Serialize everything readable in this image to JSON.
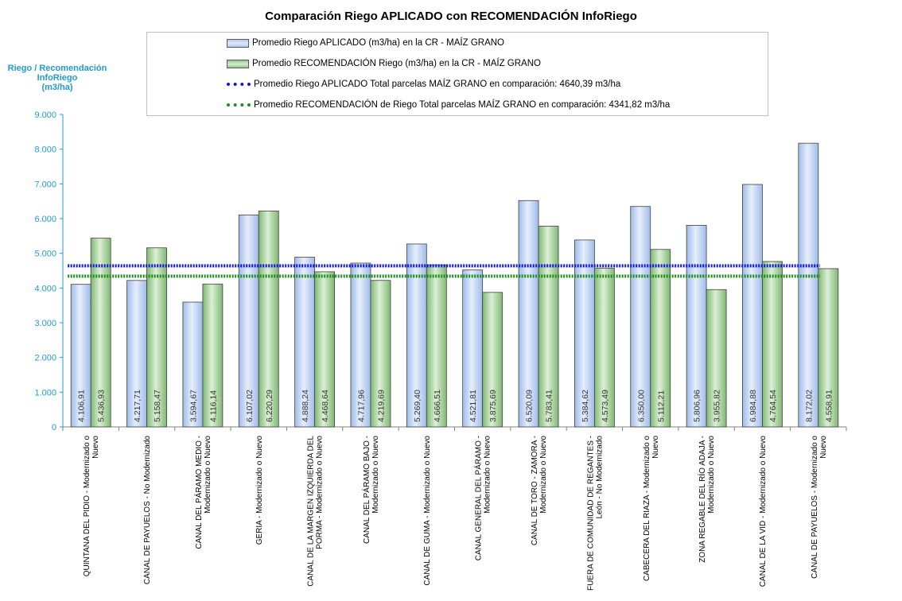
{
  "chart_data": {
    "type": "bar",
    "title": "Comparación Riego APLICADO con RECOMENDACIÓN InfoRiego",
    "ylabel_lines": [
      "Riego / Recomendación",
      "InfoRiego",
      "(m3/ha)"
    ],
    "xlabel": "",
    "ylim": [
      0,
      9000
    ],
    "yticks": [
      "0",
      "1.000",
      "2.000",
      "3.000",
      "4.000",
      "5.000",
      "6.000",
      "7.000",
      "8.000",
      "9.000"
    ],
    "ytick_values": [
      0,
      1000,
      2000,
      3000,
      4000,
      5000,
      6000,
      7000,
      8000,
      9000
    ],
    "categories": [
      [
        "QUINTANA DEL PIDIO - Modernizado o",
        "Nuevo"
      ],
      [
        "CANAL DE PAYUELOS - No Modernizado"
      ],
      [
        "CANAL DEL PÁRAMO MEDIO -",
        "Modernizado o Nuevo"
      ],
      [
        "GERIA - Modernizado o Nuevo"
      ],
      [
        "CANAL DE LA MARGEN IZQUIERDA DEL",
        "PORMA - Modernizado o Nuevo"
      ],
      [
        "CANAL DEL PÁRAMO BAJO -",
        "Modernizado o Nuevo"
      ],
      [
        "CANAL DE GUMA - Modernizado o Nuevo"
      ],
      [
        "CANAL GENERAL DEL PÁRAMO -",
        "Modernizado o Nuevo"
      ],
      [
        "CANAL DE TORO - ZAMORA -",
        "Modernizado o Nuevo"
      ],
      [
        "FUERA DE COMUNIDAD DE REGANTES -",
        "León - No Modernizado"
      ],
      [
        "CABECERA DEL RIAZA - Modernizado o",
        "Nuevo"
      ],
      [
        "ZONA REGABLE DEL RÍO ADAJA -",
        "Modernizado o Nuevo"
      ],
      [
        "CANAL DE LA VID - Modernizado o Nuevo"
      ],
      [
        "CANAL DE PAYUELOS - Modernizado o",
        "Nuevo"
      ]
    ],
    "series": [
      {
        "name": "Promedio Riego APLICADO (m3/ha) en la CR - MAÍZ GRANO",
        "color_top": "#aec6ef",
        "color_mid": "#dfe9fa",
        "color_border": "#404040",
        "values": [
          4106.91,
          4217.71,
          3594.67,
          6107.02,
          4888.24,
          4717.96,
          5269.4,
          4521.81,
          6520.09,
          5384.62,
          6350.0,
          5806.96,
          6984.88,
          8172.02
        ],
        "labels": [
          "4.106,91",
          "4.217,71",
          "3.594,67",
          "6.107,02",
          "4.888,24",
          "4.717,96",
          "5.269,40",
          "4.521,81",
          "6.520,09",
          "5.384,62",
          "6.350,00",
          "5.806,96",
          "6.984,88",
          "8.172,02"
        ]
      },
      {
        "name": "Promedio RECOMENDACIÓN Riego (m3/ha) en la CR - MAÍZ GRANO",
        "color_top": "#8fc383",
        "color_mid": "#d6ecd0",
        "color_border": "#404040",
        "values": [
          5436.93,
          5158.47,
          4116.14,
          6220.29,
          4468.64,
          4219.69,
          4666.51,
          3875.69,
          5783.41,
          4573.49,
          5112.21,
          3955.82,
          4764.54,
          4558.91
        ],
        "labels": [
          "5.436,93",
          "5.158,47",
          "4.116,14",
          "6.220,29",
          "4.468,64",
          "4.219,69",
          "4.666,51",
          "3.875,69",
          "5.783,41",
          "4.573,49",
          "5.112,21",
          "3.955,82",
          "4.764,54",
          "4.558,91"
        ]
      }
    ],
    "reference_lines": [
      {
        "name": "Promedio Riego APLICADO Total parcelas MAÍZ GRANO en comparación: 4640,39 m3/ha",
        "value": 4640.39,
        "color": "#1515e6"
      },
      {
        "name": "Promedio RECOMENDACIÓN de Riego Total parcelas MAÍZ GRANO en comparación: 4341,82 m3/ha",
        "value": 4341.82,
        "color": "#1e8f1e"
      }
    ],
    "legend_position": "top-center",
    "grid": false,
    "axis_color": "#1f9bd1"
  }
}
